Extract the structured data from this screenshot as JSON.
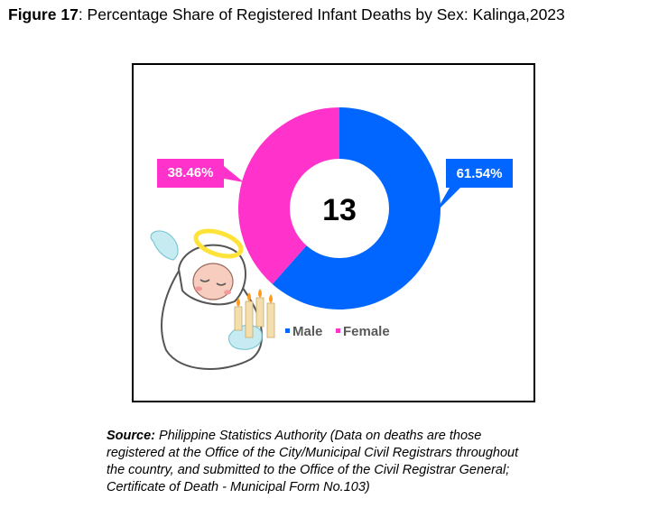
{
  "figure": {
    "label": "Figure 17",
    "title": ": Percentage Share of Registered Infant Deaths by Sex: Kalinga,2023"
  },
  "chart_data": {
    "type": "pie",
    "variant": "donut",
    "center_label": "13",
    "categories": [
      "Male",
      "Female"
    ],
    "values": [
      61.54,
      38.46
    ],
    "data_labels": [
      "61.54%",
      "38.46%"
    ],
    "colors": [
      "#0066ff",
      "#ff33cc"
    ],
    "legend": {
      "position": "bottom-right",
      "entries": [
        "Male",
        "Female"
      ]
    }
  },
  "illustration": {
    "icon": "angel-baby-with-candles-icon"
  },
  "source": {
    "label": "Source:",
    "text": " Philippine Statistics Authority (Data on deaths are those\nregistered at the Office of the City/Municipal Civil Registrars throughout\nthe country, and submitted to the Office of the Civil Registrar General;\nCertificate of Death - Municipal Form No.103)"
  }
}
